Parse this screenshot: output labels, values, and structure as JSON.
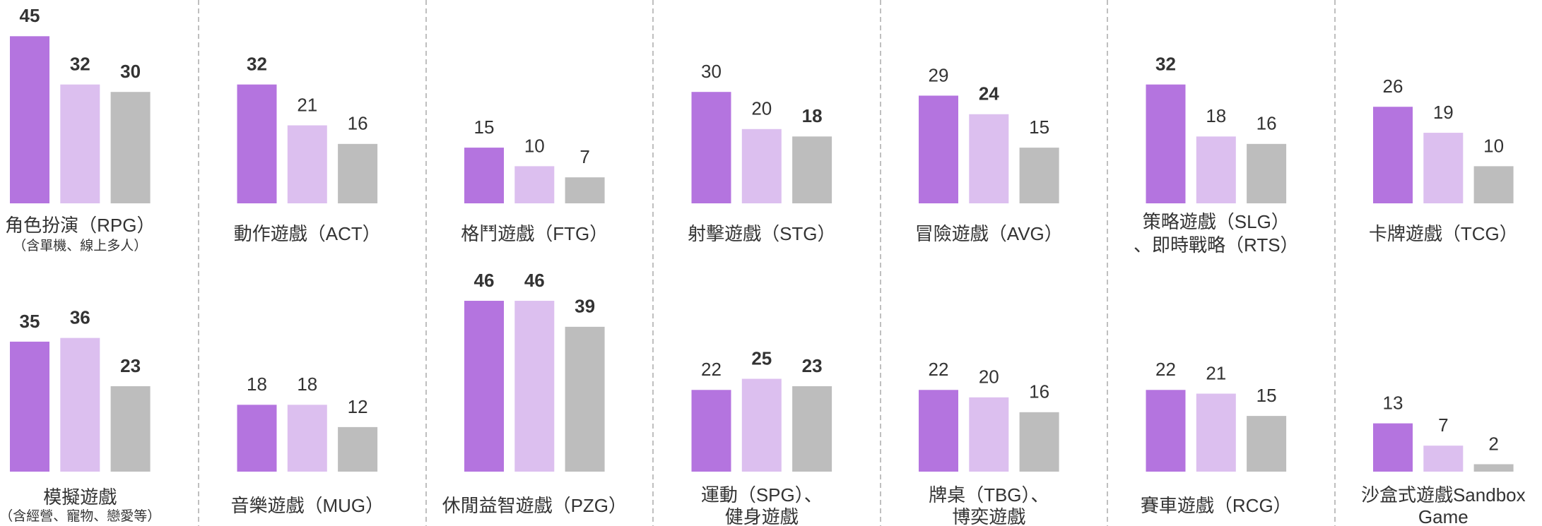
{
  "chart_data": [
    {
      "type": "bar",
      "title": [
        "角色扮演（RPG）"
      ],
      "subtitle": "（含單機、線上多人）",
      "values": [
        45,
        32,
        30
      ],
      "bold": [
        true,
        true,
        true
      ],
      "colors": [
        "#b474df",
        "#dcbfef",
        "#bdbdbd"
      ]
    },
    {
      "type": "bar",
      "title": [
        "動作遊戲（ACT）"
      ],
      "values": [
        32,
        21,
        16
      ],
      "bold": [
        true,
        false,
        false
      ],
      "colors": [
        "#b474df",
        "#dcbfef",
        "#bdbdbd"
      ]
    },
    {
      "type": "bar",
      "title": [
        "格鬥遊戲（FTG）"
      ],
      "values": [
        15,
        10,
        7
      ],
      "bold": [
        false,
        false,
        false
      ],
      "colors": [
        "#b474df",
        "#dcbfef",
        "#bdbdbd"
      ]
    },
    {
      "type": "bar",
      "title": [
        "射擊遊戲（STG）"
      ],
      "values": [
        30,
        20,
        18
      ],
      "bold": [
        false,
        false,
        true
      ],
      "colors": [
        "#b474df",
        "#dcbfef",
        "#bdbdbd"
      ]
    },
    {
      "type": "bar",
      "title": [
        "冒險遊戲（AVG）"
      ],
      "values": [
        29,
        24,
        15
      ],
      "bold": [
        false,
        true,
        false
      ],
      "colors": [
        "#b474df",
        "#dcbfef",
        "#bdbdbd"
      ]
    },
    {
      "type": "bar",
      "title": [
        "策略遊戲（SLG）",
        "、即時戰略（RTS）"
      ],
      "values": [
        32,
        18,
        16
      ],
      "bold": [
        true,
        false,
        false
      ],
      "colors": [
        "#b474df",
        "#dcbfef",
        "#bdbdbd"
      ]
    },
    {
      "type": "bar",
      "title": [
        "卡牌遊戲（TCG）"
      ],
      "values": [
        26,
        19,
        10
      ],
      "bold": [
        false,
        false,
        false
      ],
      "colors": [
        "#b474df",
        "#dcbfef",
        "#bdbdbd"
      ]
    },
    {
      "type": "bar",
      "title": [
        "模擬遊戲"
      ],
      "subtitle": "（含經營、寵物、戀愛等）",
      "values": [
        35,
        36,
        23
      ],
      "bold": [
        true,
        true,
        true
      ],
      "colors": [
        "#b474df",
        "#dcbfef",
        "#bdbdbd"
      ]
    },
    {
      "type": "bar",
      "title": [
        "音樂遊戲（MUG）"
      ],
      "values": [
        18,
        18,
        12
      ],
      "bold": [
        false,
        false,
        false
      ],
      "colors": [
        "#b474df",
        "#dcbfef",
        "#bdbdbd"
      ]
    },
    {
      "type": "bar",
      "title": [
        "休閒益智遊戲（PZG）"
      ],
      "values": [
        46,
        46,
        39
      ],
      "bold": [
        true,
        true,
        true
      ],
      "colors": [
        "#b474df",
        "#dcbfef",
        "#bdbdbd"
      ]
    },
    {
      "type": "bar",
      "title": [
        "運動（SPG）、",
        "健身遊戲"
      ],
      "values": [
        22,
        25,
        23
      ],
      "bold": [
        false,
        true,
        true
      ],
      "colors": [
        "#b474df",
        "#dcbfef",
        "#bdbdbd"
      ]
    },
    {
      "type": "bar",
      "title": [
        "牌桌（TBG）、",
        "博奕遊戲"
      ],
      "values": [
        22,
        20,
        16
      ],
      "bold": [
        false,
        false,
        false
      ],
      "colors": [
        "#b474df",
        "#dcbfef",
        "#bdbdbd"
      ]
    },
    {
      "type": "bar",
      "title": [
        "賽車遊戲（RCG）"
      ],
      "values": [
        22,
        21,
        15
      ],
      "bold": [
        false,
        false,
        false
      ],
      "colors": [
        "#b474df",
        "#dcbfef",
        "#bdbdbd"
      ]
    },
    {
      "type": "bar",
      "title": [
        "沙盒式遊戲Sandbox",
        "Game"
      ],
      "values": [
        13,
        7,
        2
      ],
      "bold": [
        false,
        false,
        false
      ],
      "colors": [
        "#b474df",
        "#dcbfef",
        "#bdbdbd"
      ]
    }
  ]
}
